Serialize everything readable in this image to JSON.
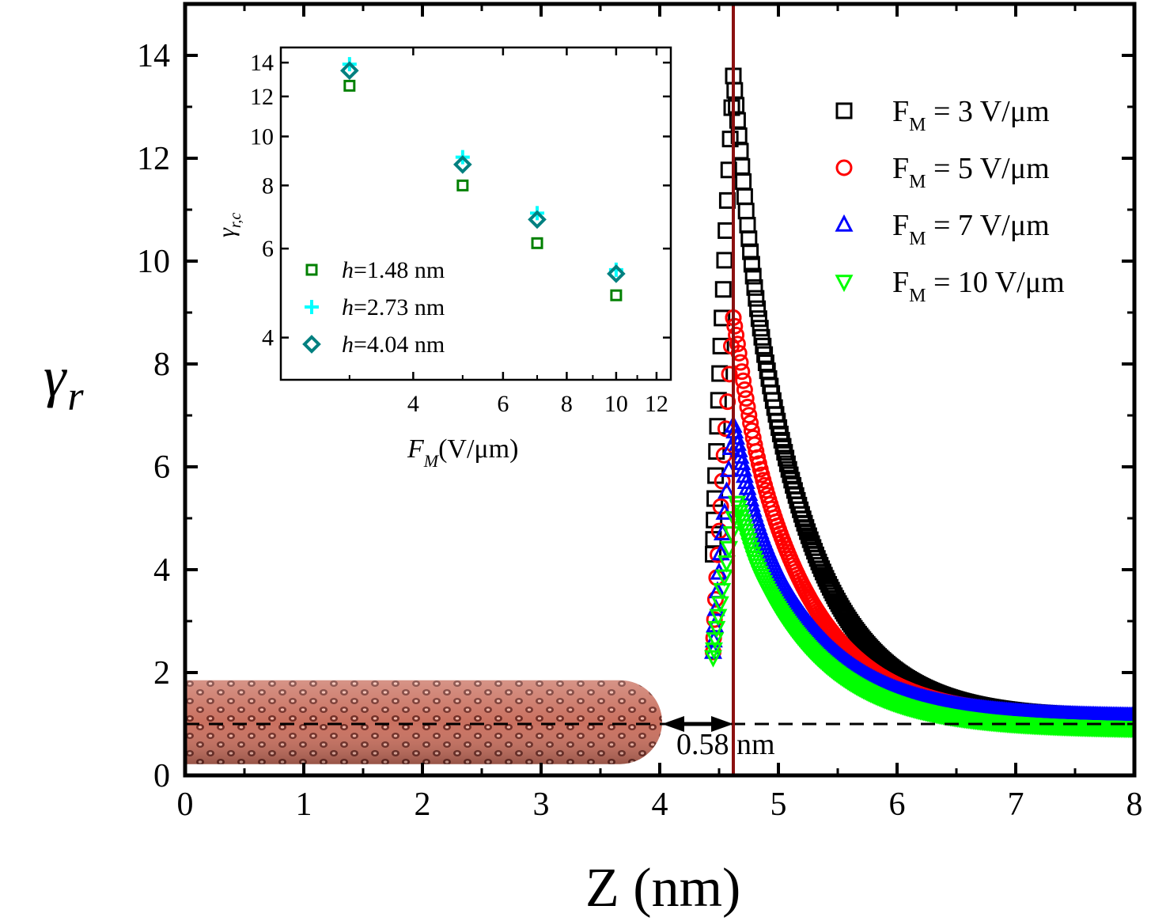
{
  "chart_data": [
    {
      "type": "scatter",
      "title": "",
      "xlabel": "Z (nm)",
      "ylabel": "γr",
      "xlim": [
        0,
        8
      ],
      "ylim": [
        0,
        15
      ],
      "x_ticks": [
        0,
        1,
        2,
        3,
        4,
        5,
        6,
        7,
        8
      ],
      "y_ticks": [
        0,
        2,
        4,
        6,
        8,
        10,
        12,
        14
      ],
      "legend_position": "top-right",
      "series": [
        {
          "name": "F_M = 3 V/μm",
          "label_main": "F",
          "label_sub": "M",
          "label_rest": " = 3 V/μm",
          "marker": "square",
          "color": "#000000",
          "peak_z": 4.62,
          "peak": 13.6
        },
        {
          "name": "F_M = 5 V/μm",
          "label_main": "F",
          "label_sub": "M",
          "label_rest": " = 5 V/μm",
          "marker": "circle",
          "color": "#ff0000",
          "peak_z": 4.62,
          "peak": 8.9
        },
        {
          "name": "F_M = 7 V/μm",
          "label_main": "F",
          "label_sub": "M",
          "label_rest": " = 7 V/μm",
          "marker": "triangle-up",
          "color": "#0000ff",
          "peak_z": 4.62,
          "peak": 6.8
        },
        {
          "name": "F_M = 10 V/μm",
          "label_main": "F",
          "label_sub": "M",
          "label_rest": " = 10 V/μm",
          "marker": "triangle-down",
          "color": "#00ff00",
          "peak_z": 4.65,
          "peak": 5.3
        }
      ],
      "start_z": 4.45,
      "baseline": 1.0,
      "tip_z": 4.62,
      "tube_end_z": 4.02,
      "annotation": "0.58 nm"
    },
    {
      "type": "scatter",
      "xlabel": "F_M (V/μm)",
      "xlabel_main": "F",
      "xlabel_sub": "M",
      "xlabel_rest": "(V/μm)",
      "ylabel": "γr,c",
      "ylabel_main": "γ",
      "ylabel_sub": "r,c",
      "xscale": "log",
      "yscale": "log",
      "xlim": [
        2.2,
        12.8
      ],
      "ylim": [
        3.3,
        15.0
      ],
      "x_ticks": [
        4,
        6,
        8,
        10,
        12
      ],
      "y_ticks": [
        4,
        6,
        8,
        10,
        12,
        14
      ],
      "legend_position": "bottom-left",
      "x": [
        3,
        5,
        7,
        10
      ],
      "series": [
        {
          "name": "h=1.48 nm",
          "label_main": "h",
          "label_rest": "=1.48 nm",
          "marker": "square",
          "color": "#008000",
          "values": [
            12.6,
            8.0,
            6.15,
            4.85
          ]
        },
        {
          "name": "h=2.73 nm",
          "label_main": "h",
          "label_rest": "=2.73 nm",
          "marker": "plus",
          "color": "#00ffff",
          "values": [
            13.9,
            9.1,
            7.05,
            5.45
          ]
        },
        {
          "name": "h=4.04 nm",
          "label_main": "h",
          "label_rest": "=4.04 nm",
          "marker": "diamond",
          "color": "#008080",
          "values": [
            13.5,
            8.8,
            6.85,
            5.35
          ]
        }
      ]
    }
  ]
}
